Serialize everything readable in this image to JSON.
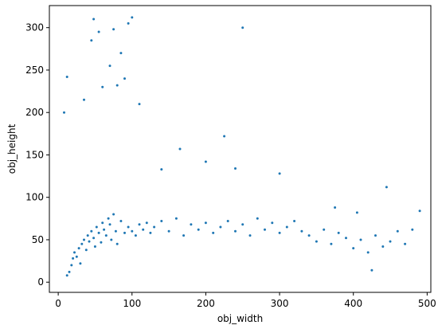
{
  "chart_data": {
    "type": "scatter",
    "xlabel": "obj_width",
    "ylabel": "obj_height",
    "xlim": [
      -12,
      505
    ],
    "ylim": [
      -12,
      326
    ],
    "xticks": [
      0,
      100,
      200,
      300,
      400,
      500
    ],
    "yticks": [
      0,
      50,
      100,
      150,
      200,
      250,
      300
    ],
    "grid": false,
    "marker_color": "#1f77b4",
    "marker_size": 1.5,
    "series": [
      {
        "points": [
          [
            12,
            8
          ],
          [
            15,
            12
          ],
          [
            18,
            20
          ],
          [
            20,
            28
          ],
          [
            22,
            35
          ],
          [
            25,
            30
          ],
          [
            28,
            40
          ],
          [
            30,
            22
          ],
          [
            32,
            45
          ],
          [
            35,
            50
          ],
          [
            38,
            38
          ],
          [
            40,
            55
          ],
          [
            42,
            48
          ],
          [
            45,
            60
          ],
          [
            48,
            52
          ],
          [
            50,
            42
          ],
          [
            52,
            65
          ],
          [
            55,
            58
          ],
          [
            58,
            47
          ],
          [
            60,
            70
          ],
          [
            62,
            62
          ],
          [
            65,
            55
          ],
          [
            68,
            75
          ],
          [
            70,
            68
          ],
          [
            72,
            50
          ],
          [
            75,
            80
          ],
          [
            78,
            60
          ],
          [
            80,
            45
          ],
          [
            85,
            72
          ],
          [
            90,
            58
          ],
          [
            95,
            65
          ],
          [
            100,
            60
          ],
          [
            105,
            55
          ],
          [
            110,
            68
          ],
          [
            115,
            62
          ],
          [
            120,
            70
          ],
          [
            125,
            58
          ],
          [
            130,
            65
          ],
          [
            140,
            72
          ],
          [
            150,
            60
          ],
          [
            160,
            75
          ],
          [
            170,
            55
          ],
          [
            180,
            68
          ],
          [
            190,
            62
          ],
          [
            200,
            70
          ],
          [
            210,
            58
          ],
          [
            220,
            65
          ],
          [
            230,
            72
          ],
          [
            240,
            60
          ],
          [
            250,
            68
          ],
          [
            260,
            55
          ],
          [
            270,
            75
          ],
          [
            280,
            62
          ],
          [
            290,
            70
          ],
          [
            300,
            58
          ],
          [
            310,
            65
          ],
          [
            320,
            72
          ],
          [
            330,
            60
          ],
          [
            340,
            55
          ],
          [
            350,
            48
          ],
          [
            360,
            62
          ],
          [
            370,
            45
          ],
          [
            380,
            58
          ],
          [
            390,
            52
          ],
          [
            400,
            40
          ],
          [
            410,
            50
          ],
          [
            420,
            35
          ],
          [
            425,
            14
          ],
          [
            430,
            55
          ],
          [
            440,
            42
          ],
          [
            450,
            48
          ],
          [
            460,
            60
          ],
          [
            470,
            45
          ],
          [
            480,
            62
          ],
          [
            490,
            84
          ],
          [
            445,
            112
          ],
          [
            405,
            82
          ],
          [
            375,
            88
          ],
          [
            300,
            128
          ],
          [
            250,
            300
          ],
          [
            225,
            172
          ],
          [
            240,
            134
          ],
          [
            200,
            142
          ],
          [
            165,
            157
          ],
          [
            140,
            133
          ],
          [
            110,
            210
          ],
          [
            100,
            312
          ],
          [
            95,
            305
          ],
          [
            48,
            310
          ],
          [
            8,
            200
          ],
          [
            12,
            242
          ],
          [
            45,
            285
          ],
          [
            55,
            295
          ],
          [
            75,
            298
          ],
          [
            85,
            270
          ],
          [
            70,
            255
          ],
          [
            80,
            232
          ],
          [
            60,
            230
          ],
          [
            90,
            240
          ],
          [
            35,
            215
          ]
        ]
      }
    ]
  }
}
